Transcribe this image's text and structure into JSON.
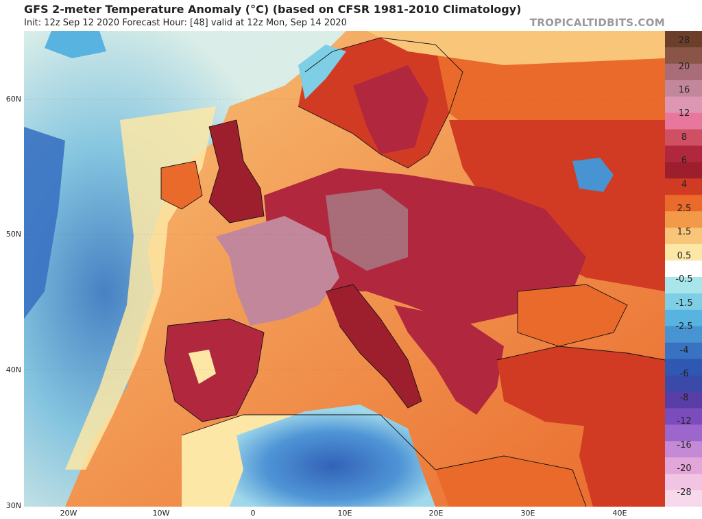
{
  "header": {
    "title": "GFS 2-meter Temperature Anomaly (°C) (based on CFSR 1981-2010 Climatology)",
    "subtitle": "Init: 12z Sep 12 2020   Forecast Hour: [48]   valid at 12z Mon, Sep 14 2020",
    "credit": "TROPICALTIDBITS.COM"
  },
  "map": {
    "lat_labels": [
      "60N",
      "50N",
      "40N",
      "30N"
    ],
    "lon_labels": [
      "20W",
      "10W",
      "0",
      "10E",
      "20E",
      "30E",
      "40E"
    ]
  },
  "colorbar": {
    "labels": [
      "28",
      "20",
      "16",
      "12",
      "8",
      "6",
      "4",
      "2.5",
      "1.5",
      "0.5",
      "-0.5",
      "-1.5",
      "-2.5",
      "-4",
      "-6",
      "-8",
      "-12",
      "-16",
      "-20",
      "-28"
    ],
    "colors": [
      "#6b3f2a",
      "#8a5446",
      "#a86d79",
      "#c3879b",
      "#dd97b3",
      "#e8779e",
      "#cf4f63",
      "#b1283e",
      "#9d1f2d",
      "#d23b23",
      "#ea6a2c",
      "#f39a48",
      "#f9c579",
      "#fde7a6",
      "#ffffff",
      "#a9e6ec",
      "#7ecfe6",
      "#58b3e0",
      "#4893d2",
      "#3a72c2",
      "#2f58b3",
      "#3a4aa8",
      "#5a3ea8",
      "#7a4cbc",
      "#9d66cc",
      "#c58ad6",
      "#e3a6d8",
      "#f0c4e2",
      "#f7d9ec"
    ]
  }
}
